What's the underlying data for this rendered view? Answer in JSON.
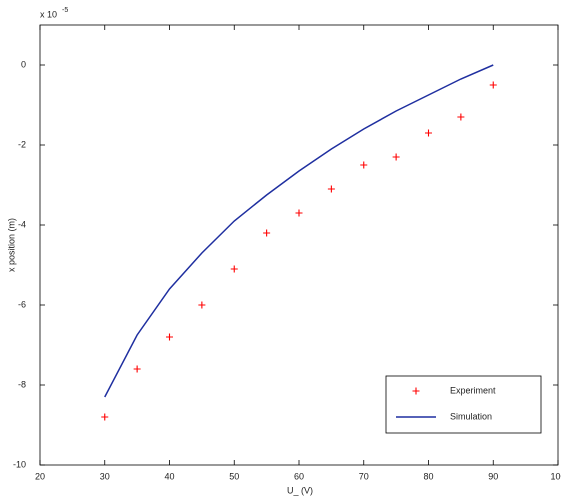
{
  "chart_data": {
    "type": "line",
    "exponent_label": {
      "base": "x 10",
      "power": "-5"
    },
    "xlabel": "U_ (V)",
    "ylabel": "x position (m)",
    "x": [
      30,
      35,
      40,
      45,
      50,
      55,
      60,
      65,
      70,
      75,
      80,
      85,
      90
    ],
    "series": [
      {
        "name": "Experiment",
        "style": "marker",
        "color": "#ff0000",
        "values": [
          -8.8,
          -7.6,
          -6.8,
          -6.0,
          -5.1,
          -4.2,
          -3.7,
          -3.1,
          -2.5,
          -2.3,
          -1.7,
          -1.3,
          -0.5
        ]
      },
      {
        "name": "Simulation",
        "style": "line",
        "color": "#1f2fa0",
        "values": [
          -8.3,
          -6.75,
          -5.6,
          -4.7,
          -3.9,
          -3.25,
          -2.65,
          -2.1,
          -1.6,
          -1.15,
          -0.75,
          -0.35,
          0
        ]
      }
    ],
    "xlim": [
      20,
      100
    ],
    "xticks": [
      20,
      30,
      40,
      50,
      60,
      70,
      80,
      90,
      100
    ],
    "ylim": [
      -10,
      1
    ],
    "yticks": [
      -10,
      -8,
      -6,
      -4,
      -2,
      0
    ],
    "grid": false,
    "legend": "lower right"
  }
}
